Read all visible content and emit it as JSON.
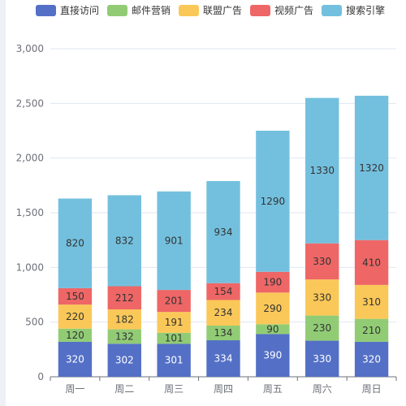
{
  "chart_data": {
    "type": "bar",
    "stacked": true,
    "categories": [
      "周一",
      "周二",
      "周三",
      "周四",
      "周五",
      "周六",
      "周日"
    ],
    "series": [
      {
        "name": "直接访问",
        "color": "#5470c6",
        "values": [
          320,
          302,
          301,
          334,
          390,
          330,
          320
        ]
      },
      {
        "name": "邮件营销",
        "color": "#91cc75",
        "values": [
          120,
          132,
          101,
          134,
          90,
          230,
          210
        ]
      },
      {
        "name": "联盟广告",
        "color": "#fac858",
        "values": [
          220,
          182,
          191,
          234,
          290,
          330,
          310
        ]
      },
      {
        "name": "视频广告",
        "color": "#ee6666",
        "values": [
          150,
          212,
          201,
          154,
          190,
          330,
          410
        ]
      },
      {
        "name": "搜索引擎",
        "color": "#73c0de",
        "values": [
          820,
          832,
          901,
          934,
          1290,
          1330,
          1320
        ]
      }
    ],
    "y_ticks": [
      "0",
      "500",
      "1,000",
      "1,500",
      "2,000",
      "2,500",
      "3,000"
    ],
    "ylim": [
      0,
      3000
    ],
    "grid": true,
    "legend_position": "top"
  }
}
